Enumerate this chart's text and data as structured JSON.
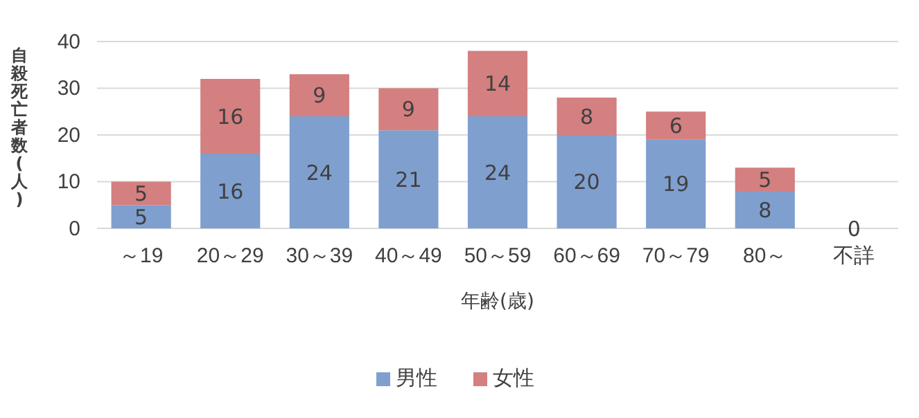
{
  "chart_data": {
    "type": "bar",
    "stacked": true,
    "xlabel": "年齢(歳)",
    "ylabel": "自殺死亡者数(人)",
    "categories": [
      "～19",
      "20～29",
      "30～39",
      "40～49",
      "50～59",
      "60～69",
      "70～79",
      "80～",
      "不詳"
    ],
    "series": [
      {
        "name": "男性",
        "color": "#7f9fcf",
        "values": [
          5,
          16,
          24,
          21,
          24,
          20,
          19,
          8,
          0
        ],
        "value_labels": [
          "5",
          "16",
          "24",
          "21",
          "24",
          "20",
          "19",
          "8",
          "0"
        ]
      },
      {
        "name": "女性",
        "color": "#d47f80",
        "values": [
          5,
          16,
          9,
          9,
          14,
          8,
          6,
          5,
          0
        ],
        "value_labels": [
          "5",
          "16",
          "9",
          "9",
          "14",
          "8",
          "6",
          "5",
          null
        ]
      }
    ],
    "ylim": [
      0,
      40
    ],
    "yticks": [
      0,
      10,
      20,
      30,
      40
    ],
    "grid": "y",
    "legend": "bottom"
  }
}
